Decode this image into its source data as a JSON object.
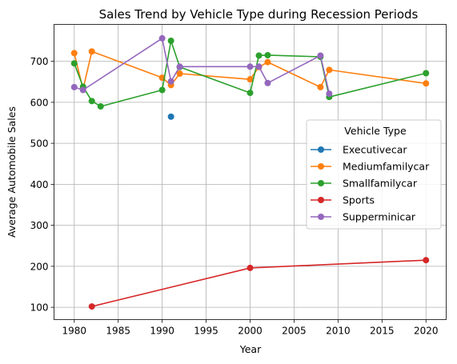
{
  "chart_data": {
    "type": "line",
    "title": "Sales Trend by Vehicle Type during Recession Periods",
    "xlabel": "Year",
    "ylabel": "Average Automobile Sales",
    "xlim": [
      1977.7,
      2022.3
    ],
    "ylim": [
      70,
      790
    ],
    "xticks": [
      1980,
      1985,
      1990,
      1995,
      2000,
      2005,
      2010,
      2015,
      2020
    ],
    "yticks": [
      100,
      200,
      300,
      400,
      500,
      600,
      700
    ],
    "grid": true,
    "legend": {
      "title": "Vehicle Type",
      "placement": "center-right"
    },
    "series": [
      {
        "name": "Executivecar",
        "color": "#1f77b4",
        "points": [
          [
            1991,
            565
          ]
        ]
      },
      {
        "name": "Mediumfamilycar",
        "color": "#ff7f0e",
        "points": [
          [
            1980,
            720
          ],
          [
            1981,
            632
          ],
          [
            1982,
            724
          ],
          [
            1990,
            660
          ],
          [
            1991,
            642
          ],
          [
            1992,
            670
          ],
          [
            2000,
            656
          ],
          [
            2001,
            686
          ],
          [
            2002,
            698
          ],
          [
            2008,
            637
          ],
          [
            2009,
            679
          ],
          [
            2020,
            646
          ]
        ]
      },
      {
        "name": "Smallfamilycar",
        "color": "#2ca02c",
        "points": [
          [
            1980,
            695
          ],
          [
            1981,
            638
          ],
          [
            1982,
            603
          ],
          [
            1983,
            590
          ],
          [
            1990,
            630
          ],
          [
            1991,
            750
          ],
          [
            1992,
            686
          ],
          [
            2000,
            623
          ],
          [
            2001,
            714
          ],
          [
            2002,
            715
          ],
          [
            2008,
            711
          ],
          [
            2009,
            613
          ],
          [
            2020,
            671
          ]
        ]
      },
      {
        "name": "Sports",
        "color": "#d62728",
        "points": [
          [
            1982,
            102
          ],
          [
            2000,
            196
          ],
          [
            2020,
            215
          ]
        ]
      },
      {
        "name": "Supperminicar",
        "color": "#9467bd",
        "points": [
          [
            1980,
            637
          ],
          [
            1981,
            630
          ],
          [
            1990,
            756
          ],
          [
            1991,
            651
          ],
          [
            1992,
            687
          ],
          [
            2000,
            687
          ],
          [
            2001,
            687
          ],
          [
            2002,
            647
          ],
          [
            2008,
            714
          ],
          [
            2009,
            621
          ]
        ]
      }
    ]
  }
}
